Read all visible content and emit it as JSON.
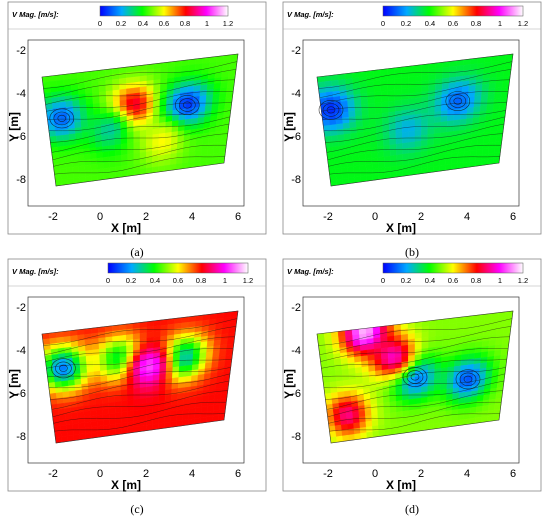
{
  "chart_data": [
    {
      "type": "heatmap",
      "panel": "(a)",
      "title": "",
      "colorbar": {
        "label": "V Mag. [m/s]:",
        "ticks": [
          "0",
          "0.2",
          "0.4",
          "0.6",
          "0.8",
          "1",
          "1.2"
        ],
        "range": [
          0,
          1.2
        ]
      },
      "xlabel": "X [m]",
      "ylabel": "Y [m]",
      "xticks": [
        "-2",
        "0",
        "2",
        "4",
        "6"
      ],
      "yticks": [
        "-2",
        "-4",
        "-6",
        "-8"
      ],
      "xlim": [
        -3,
        6.5
      ],
      "ylim": [
        -9,
        -1
      ],
      "field": {
        "base_speed": 0.45,
        "overlay": "streamlines",
        "regions": [
          {
            "x": -1.8,
            "y": -4.7,
            "speed": 0.12
          },
          {
            "x": 1.2,
            "y": -4.6,
            "speed": 0.9
          },
          {
            "x": 3.5,
            "y": -4.8,
            "speed": 0.05
          },
          {
            "x": 0.2,
            "y": -5.5,
            "speed": 0.28
          },
          {
            "x": 2.5,
            "y": -6.3,
            "speed": 0.6
          }
        ]
      }
    },
    {
      "type": "heatmap",
      "panel": "(b)",
      "title": "",
      "colorbar": {
        "label": "V Mag. [m/s]:",
        "ticks": [
          "0",
          "0.2",
          "0.4",
          "0.6",
          "0.8",
          "1",
          "1.2"
        ],
        "range": [
          0,
          1.2
        ]
      },
      "xlabel": "X [m]",
      "ylabel": "Y [m]",
      "xticks": [
        "-2",
        "0",
        "2",
        "4",
        "6"
      ],
      "yticks": [
        "-2",
        "-4",
        "-6",
        "-8"
      ],
      "xlim": [
        -3,
        6.5
      ],
      "ylim": [
        -9,
        -1
      ],
      "field": {
        "base_speed": 0.38,
        "overlay": "streamlines",
        "regions": [
          {
            "x": -2.0,
            "y": -4.3,
            "speed": 0.05
          },
          {
            "x": 1.2,
            "y": -5.6,
            "speed": 0.22
          },
          {
            "x": 3.3,
            "y": -4.6,
            "speed": 0.12
          }
        ]
      }
    },
    {
      "type": "heatmap",
      "panel": "(c)",
      "title": "",
      "colorbar": {
        "label": "V Mag. [m/s]:",
        "ticks": [
          "0",
          "0.2",
          "0.4",
          "0.6",
          "0.8",
          "1",
          "1.2"
        ],
        "range": [
          0,
          1.2
        ]
      },
      "xlabel": "X [m]",
      "ylabel": "Y [m]",
      "xticks": [
        "-2",
        "0",
        "2",
        "4",
        "6"
      ],
      "yticks": [
        "-2",
        "-4",
        "-6",
        "-8"
      ],
      "xlim": [
        -3,
        6.5
      ],
      "ylim": [
        -9,
        -1
      ],
      "field": {
        "base_speed": 0.8,
        "overlay": "streamlines",
        "regions": [
          {
            "x": -1.7,
            "y": -4.4,
            "speed": 0.15
          },
          {
            "x": 0.7,
            "y": -4.3,
            "speed": 0.3
          },
          {
            "x": 3.3,
            "y": -4.6,
            "speed": 0.2
          },
          {
            "x": 1.9,
            "y": -4.8,
            "speed": 1.05
          }
        ]
      }
    },
    {
      "type": "heatmap",
      "panel": "(d)",
      "title": "",
      "colorbar": {
        "label": "V Mag. [m/s]:",
        "ticks": [
          "0",
          "0.2",
          "0.4",
          "0.6",
          "0.8",
          "1",
          "1.2"
        ],
        "range": [
          0,
          1.2
        ]
      },
      "xlabel": "X [m]",
      "ylabel": "Y [m]",
      "xticks": [
        "-2",
        "0",
        "2",
        "4",
        "6"
      ],
      "yticks": [
        "-2",
        "-4",
        "-6",
        "-8"
      ],
      "xlim": [
        -3,
        6.5
      ],
      "ylim": [
        -9,
        -1
      ],
      "field": {
        "base_speed": 0.5,
        "overlay": "streamlines",
        "regions": [
          {
            "x": -0.5,
            "y": -3.0,
            "speed": 1.15
          },
          {
            "x": 1.5,
            "y": -5.2,
            "speed": 0.08
          },
          {
            "x": -1.5,
            "y": -6.5,
            "speed": 0.9
          },
          {
            "x": 3.8,
            "y": -5.6,
            "speed": 0.1
          },
          {
            "x": 0.6,
            "y": -4.2,
            "speed": 0.95
          }
        ]
      }
    }
  ]
}
